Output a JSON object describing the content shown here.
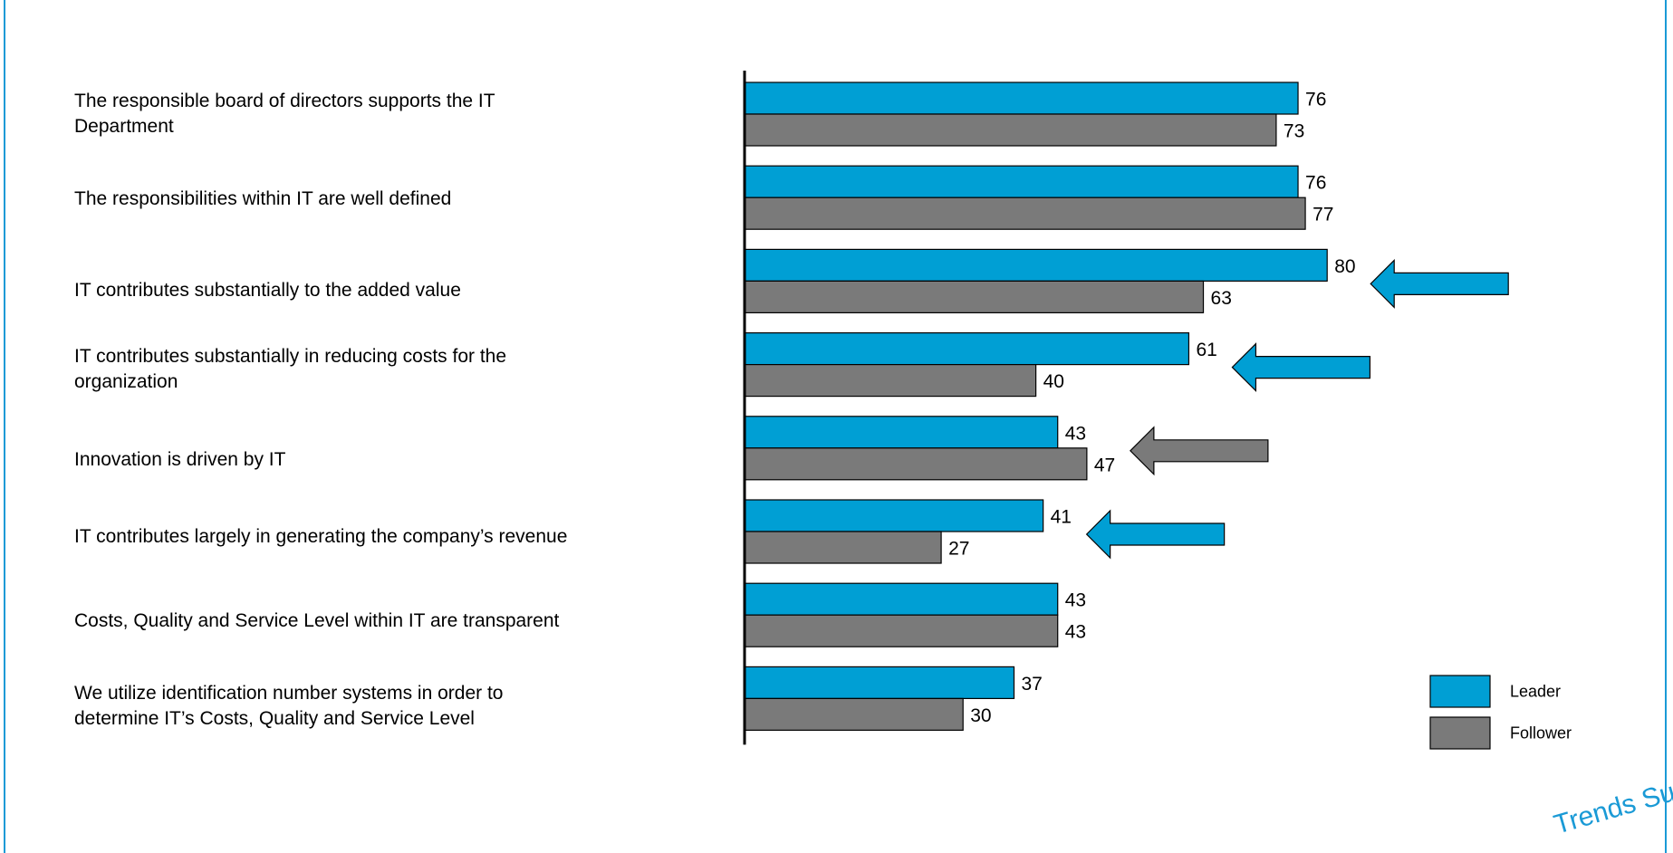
{
  "chart_data": {
    "type": "bar",
    "orientation": "horizontal",
    "categories": [
      "The responsible board of directors supports the IT Department",
      "The responsibilities within IT are well defined",
      "IT contributes substantially to the added value",
      "IT contributes substantially in reducing costs for the organization",
      "Innovation is driven by IT",
      "IT contributes largely in generating the company’s revenue",
      "Costs, Quality and Service Level within IT are transparent",
      "We utilize identification number systems in order to determine IT’s Costs, Quality and Service Level"
    ],
    "series": [
      {
        "name": "Leader",
        "color": "#009fd4",
        "values": [
          76,
          76,
          80,
          61,
          43,
          41,
          43,
          37
        ]
      },
      {
        "name": "Follower",
        "color": "#7a7a7a",
        "values": [
          73,
          77,
          63,
          40,
          47,
          27,
          43,
          30
        ]
      }
    ],
    "data_labels": true,
    "legend_position": "bottom-right",
    "highlight_arrows": [
      {
        "category_index": 2,
        "color": "#009fd4"
      },
      {
        "category_index": 3,
        "color": "#009fd4"
      },
      {
        "category_index": 4,
        "color": "#7a7a7a"
      },
      {
        "category_index": 5,
        "color": "#009fd4"
      }
    ]
  },
  "statements": [
    {
      "line1": "The responsible board of directors supports the IT",
      "line2": "Department"
    },
    {
      "line1": "The responsibilities within IT are well defined",
      "line2": ""
    },
    {
      "line1": "IT contributes substantially to the added value",
      "line2": ""
    },
    {
      "line1": "IT contributes substantially in reducing costs for the",
      "line2": "organization"
    },
    {
      "line1": "Innovation is driven by IT",
      "line2": ""
    },
    {
      "line1": "IT contributes largely in generating the company’s revenue",
      "line2": ""
    },
    {
      "line1": "Costs, Quality and Service Level within IT are transparent",
      "line2": ""
    },
    {
      "line1": "We utilize identification number systems in order to",
      "line2": "determine IT’s Costs, Quality and Service Level"
    }
  ],
  "watermark": "Trends Surve"
}
